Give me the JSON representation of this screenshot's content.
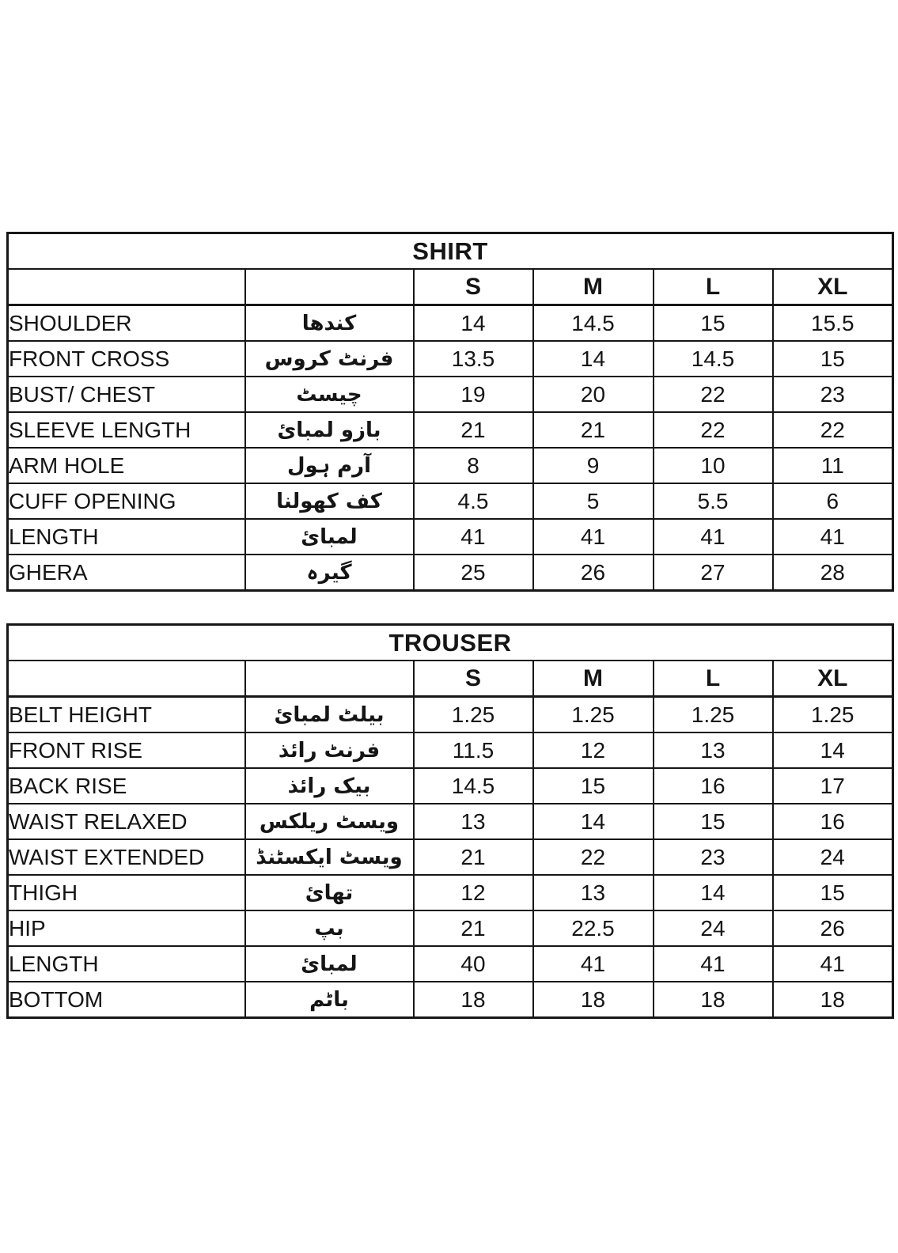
{
  "page": {
    "background_color": "#ffffff",
    "text_color": "#151515",
    "border_color": "#161616"
  },
  "chart_data": [
    {
      "type": "table",
      "title": "SHIRT",
      "size_headers": [
        "S",
        "M",
        "L",
        "XL"
      ],
      "rows": [
        {
          "label": "SHOULDER",
          "urdu": "کندھا",
          "values": [
            "14",
            "14.5",
            "15",
            "15.5"
          ]
        },
        {
          "label": "FRONT CROSS",
          "urdu": "فرنٹ کروس",
          "values": [
            "13.5",
            "14",
            "14.5",
            "15"
          ]
        },
        {
          "label": "BUST/ CHEST",
          "urdu": "چیسٹ",
          "values": [
            "19",
            "20",
            "22",
            "23"
          ]
        },
        {
          "label": "SLEEVE LENGTH",
          "urdu": "بازو لمبائ",
          "values": [
            "21",
            "21",
            "22",
            "22"
          ]
        },
        {
          "label": "ARM HOLE",
          "urdu": "آرم ہول",
          "values": [
            "8",
            "9",
            "10",
            "11"
          ]
        },
        {
          "label": "CUFF OPENING",
          "urdu": "کف کھولنا",
          "values": [
            "4.5",
            "5",
            "5.5",
            "6"
          ]
        },
        {
          "label": "LENGTH",
          "urdu": "لمبائ",
          "values": [
            "41",
            "41",
            "41",
            "41"
          ]
        },
        {
          "label": "GHERA",
          "urdu": "گیرہ",
          "values": [
            "25",
            "26",
            "27",
            "28"
          ]
        }
      ]
    },
    {
      "type": "table",
      "title": "TROUSER",
      "size_headers": [
        "S",
        "M",
        "L",
        "XL"
      ],
      "rows": [
        {
          "label": "BELT HEIGHT",
          "urdu": "بیلٹ لمبائ",
          "values": [
            "1.25",
            "1.25",
            "1.25",
            "1.25"
          ]
        },
        {
          "label": "FRONT RISE",
          "urdu": "فرنٹ رائذ",
          "values": [
            "11.5",
            "12",
            "13",
            "14"
          ]
        },
        {
          "label": "BACK RISE",
          "urdu": "بیک رائذ",
          "values": [
            "14.5",
            "15",
            "16",
            "17"
          ]
        },
        {
          "label": "WAIST RELAXED",
          "urdu": "ویسٹ ریلکس",
          "values": [
            "13",
            "14",
            "15",
            "16"
          ]
        },
        {
          "label": "WAIST EXTENDED",
          "urdu": "ویسٹ ایکسٹنڈ",
          "values": [
            "21",
            "22",
            "23",
            "24"
          ]
        },
        {
          "label": "THIGH",
          "urdu": "تھائ",
          "values": [
            "12",
            "13",
            "14",
            "15"
          ]
        },
        {
          "label": "HIP",
          "urdu": "بپ",
          "values": [
            "21",
            "22.5",
            "24",
            "26"
          ]
        },
        {
          "label": "LENGTH",
          "urdu": "لمبائ",
          "values": [
            "40",
            "41",
            "41",
            "41"
          ]
        },
        {
          "label": "BOTTOM",
          "urdu": "باٹم",
          "values": [
            "18",
            "18",
            "18",
            "18"
          ]
        }
      ]
    }
  ]
}
